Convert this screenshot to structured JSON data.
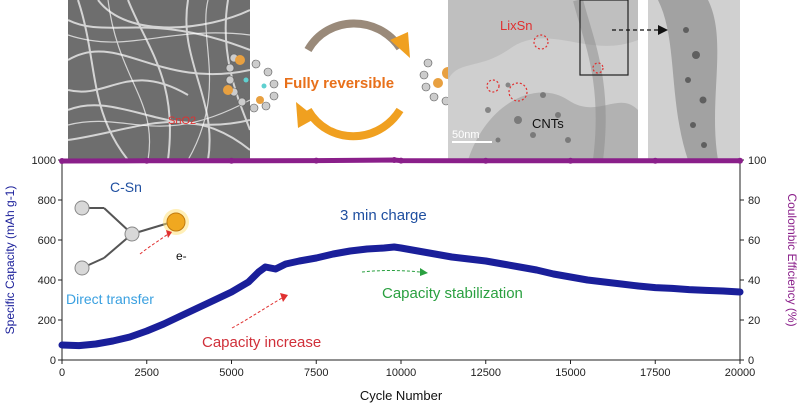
{
  "top_panels": {
    "sem_label": "SnO2",
    "arrow_label": "Fully reversible",
    "tem_label_lixsn": "LixSn",
    "tem_label_cnts": "CNTs",
    "scale_bar": "50nm"
  },
  "inset": {
    "title": "C-Sn",
    "electron": "e-",
    "direct_transfer": "Direct transfer"
  },
  "annotations": {
    "charge": "3 min charge",
    "increase": "Capacity increase",
    "stabilization": "Capacity stabilization"
  },
  "colors": {
    "capacity": "#1a1f9a",
    "efficiency": "#8a1f8a",
    "increase_text": "#d0303a",
    "stabilization_text": "#2aa040",
    "transfer_text": "#3aa0e0",
    "charge_text": "#1f4fa0",
    "fully_reversible": "#e8701a"
  },
  "chart_data": {
    "type": "scatter",
    "xlabel": "Cycle Number",
    "ylabel": "Specific Capacity (mAh g-1)",
    "y2label": "Coulombic Efficiency (%)",
    "xlim": [
      0,
      20000
    ],
    "ylim": [
      0,
      1000
    ],
    "y2lim": [
      0,
      100
    ],
    "xticks": [
      "0",
      "2500",
      "5000",
      "7500",
      "10000",
      "12500",
      "15000",
      "17500",
      "20000"
    ],
    "yticks": [
      "0",
      "200",
      "400",
      "600",
      "800",
      "1000"
    ],
    "y2ticks": [
      "0",
      "20",
      "40",
      "60",
      "80",
      "100"
    ],
    "series": [
      {
        "axis": "left",
        "x": [
          0,
          500,
          1000,
          1500,
          2000,
          2500,
          3000,
          3500,
          4000,
          4500,
          5000,
          5500,
          5800,
          6000,
          6300,
          6600,
          7000,
          7500,
          8000,
          8500,
          9000,
          9500,
          9800,
          10000,
          10500,
          11000,
          11500,
          12000,
          12500,
          13000,
          13500,
          14000,
          14500,
          15000,
          15500,
          16000,
          16500,
          17000,
          17500,
          18000,
          18500,
          19000,
          19500,
          20000
        ],
        "y": [
          75,
          72,
          80,
          95,
          115,
          145,
          180,
          220,
          260,
          300,
          340,
          390,
          440,
          465,
          455,
          480,
          495,
          510,
          530,
          545,
          555,
          560,
          565,
          560,
          545,
          530,
          515,
          505,
          495,
          480,
          465,
          450,
          430,
          415,
          400,
          390,
          380,
          370,
          362,
          358,
          352,
          348,
          345,
          340
        ]
      },
      {
        "axis": "right",
        "x": [
          0,
          2500,
          5000,
          7500,
          9800,
          10000,
          12500,
          15000,
          17500,
          20000
        ],
        "y": [
          99.5,
          99.6,
          99.6,
          99.7,
          100,
          99.7,
          99.6,
          99.6,
          99.6,
          99.6
        ]
      }
    ]
  }
}
